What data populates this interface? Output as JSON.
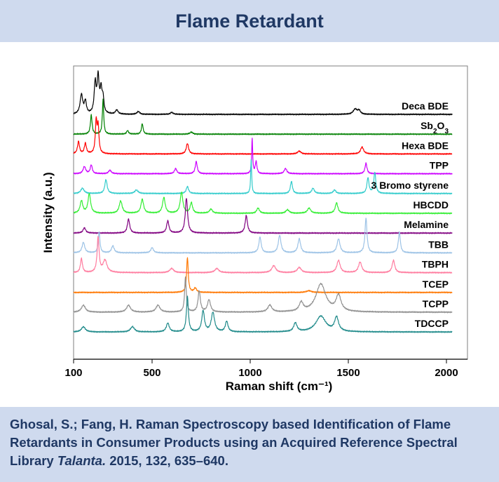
{
  "header": {
    "title": "Flame Retardant"
  },
  "caption": {
    "authors_text": "Ghosal, S.; Fang, H. Raman Spectroscopy based Identification of Flame Retardants in Consumer Products using an Acquired Reference Spectral Library ",
    "journal": "Talanta.",
    "citation_rest": " 2015, 132, 635–640."
  },
  "chart_data": {
    "type": "line",
    "title": "",
    "xlabel": "Raman shift (cm⁻¹)",
    "ylabel": "Intensity (a.u.)",
    "xlim": [
      100,
      2000
    ],
    "xticks": [
      100,
      500,
      1000,
      1500,
      2000
    ],
    "x_range_drawn": [
      100,
      2030
    ],
    "grid": false,
    "legend": "none",
    "note": "Stacked offset Raman spectra; each series labeled at right; y values are relative intensities (0-1) above each trace baseline.",
    "series": [
      {
        "name": "Deca BDE",
        "label_parts": [
          [
            "Deca BDE",
            ""
          ]
        ],
        "color": "#000000",
        "peaks": [
          [
            140,
            0.55,
            8
          ],
          [
            160,
            0.35,
            6
          ],
          [
            210,
            0.85,
            6
          ],
          [
            225,
            1.0,
            6
          ],
          [
            240,
            0.65,
            6
          ],
          [
            250,
            0.4,
            5
          ],
          [
            320,
            0.12,
            8
          ],
          [
            430,
            0.08,
            8
          ],
          [
            600,
            0.06,
            8
          ],
          [
            1535,
            0.15,
            12
          ],
          [
            1555,
            0.1,
            8
          ]
        ]
      },
      {
        "name": "Sb2O3",
        "label_parts": [
          [
            "Sb",
            ""
          ],
          [
            "2",
            "sub"
          ],
          [
            "O",
            ""
          ],
          [
            "3",
            "sub"
          ]
        ],
        "color": "#008000",
        "peaks": [
          [
            190,
            0.55,
            5
          ],
          [
            250,
            1.0,
            4
          ],
          [
            375,
            0.1,
            6
          ],
          [
            450,
            0.3,
            5
          ],
          [
            700,
            0.06,
            8
          ]
        ]
      },
      {
        "name": "Hexa BDE",
        "label_parts": [
          [
            "Hexa BDE",
            ""
          ]
        ],
        "color": "#ff0000",
        "peaks": [
          [
            125,
            0.35,
            6
          ],
          [
            160,
            0.3,
            6
          ],
          [
            215,
            0.9,
            5
          ],
          [
            225,
            0.75,
            5
          ],
          [
            680,
            0.3,
            7
          ],
          [
            1250,
            0.08,
            10
          ],
          [
            1570,
            0.2,
            9
          ]
        ]
      },
      {
        "name": "TPP",
        "label_parts": [
          [
            "TPP",
            ""
          ]
        ],
        "color": "#cc00ff",
        "peaks": [
          [
            155,
            0.2,
            8
          ],
          [
            190,
            0.25,
            6
          ],
          [
            285,
            0.1,
            8
          ],
          [
            620,
            0.15,
            7
          ],
          [
            725,
            0.35,
            6
          ],
          [
            1010,
            1.0,
            3
          ],
          [
            1030,
            0.35,
            5
          ],
          [
            1180,
            0.15,
            8
          ],
          [
            1590,
            0.3,
            6
          ]
        ]
      },
      {
        "name": "3 Bromo styrene",
        "label_parts": [
          [
            "3 Bromo styrene",
            ""
          ]
        ],
        "color": "#33cccc",
        "peaks": [
          [
            145,
            0.15,
            10
          ],
          [
            265,
            0.4,
            7
          ],
          [
            420,
            0.1,
            10
          ],
          [
            680,
            0.2,
            7
          ],
          [
            1005,
            1.0,
            3
          ],
          [
            1210,
            0.35,
            6
          ],
          [
            1320,
            0.15,
            8
          ],
          [
            1430,
            0.1,
            8
          ],
          [
            1600,
            0.45,
            6
          ],
          [
            1635,
            0.6,
            6
          ]
        ]
      },
      {
        "name": "HBCDD",
        "label_parts": [
          [
            "HBCDD",
            ""
          ]
        ],
        "color": "#33ee33",
        "peaks": [
          [
            140,
            0.35,
            8
          ],
          [
            180,
            0.55,
            8
          ],
          [
            340,
            0.35,
            9
          ],
          [
            450,
            0.4,
            8
          ],
          [
            560,
            0.45,
            8
          ],
          [
            650,
            0.6,
            8
          ],
          [
            700,
            0.3,
            7
          ],
          [
            800,
            0.12,
            9
          ],
          [
            1040,
            0.15,
            8
          ],
          [
            1190,
            0.1,
            10
          ],
          [
            1300,
            0.15,
            10
          ],
          [
            1440,
            0.3,
            8
          ]
        ]
      },
      {
        "name": "Melamine",
        "label_parts": [
          [
            "Melamine",
            ""
          ]
        ],
        "color": "#800080",
        "peaks": [
          [
            155,
            0.15,
            8
          ],
          [
            380,
            0.4,
            7
          ],
          [
            580,
            0.35,
            7
          ],
          [
            675,
            1.0,
            7
          ],
          [
            980,
            0.5,
            7
          ]
        ]
      },
      {
        "name": "TBB",
        "label_parts": [
          [
            "TBB",
            ""
          ]
        ],
        "color": "#9dc3e6",
        "peaks": [
          [
            150,
            0.3,
            8
          ],
          [
            230,
            0.6,
            5
          ],
          [
            300,
            0.2,
            8
          ],
          [
            500,
            0.15,
            8
          ],
          [
            1050,
            0.45,
            7
          ],
          [
            1150,
            0.5,
            8
          ],
          [
            1250,
            0.4,
            8
          ],
          [
            1450,
            0.4,
            9
          ],
          [
            1590,
            1.0,
            6
          ],
          [
            1760,
            0.6,
            6
          ]
        ]
      },
      {
        "name": "TBPH",
        "label_parts": [
          [
            "TBPH",
            ""
          ]
        ],
        "color": "#ff7c9f",
        "peaks": [
          [
            140,
            0.4,
            6
          ],
          [
            225,
            1.0,
            6
          ],
          [
            260,
            0.35,
            12
          ],
          [
            600,
            0.12,
            12
          ],
          [
            830,
            0.12,
            12
          ],
          [
            1120,
            0.2,
            12
          ],
          [
            1250,
            0.15,
            12
          ],
          [
            1450,
            0.35,
            10
          ],
          [
            1560,
            0.3,
            10
          ],
          [
            1730,
            0.35,
            8
          ]
        ]
      },
      {
        "name": "TCEP",
        "label_parts": [
          [
            "TCEP",
            ""
          ]
        ],
        "color": "#ff7700",
        "peaks": [
          [
            680,
            1.0,
            5
          ],
          [
            720,
            0.12,
            8
          ],
          [
            1300,
            0.05,
            15
          ]
        ]
      },
      {
        "name": "TCPP",
        "label_parts": [
          [
            "TCPP",
            ""
          ]
        ],
        "color": "#909090",
        "peaks": [
          [
            150,
            0.2,
            12
          ],
          [
            380,
            0.2,
            12
          ],
          [
            530,
            0.2,
            12
          ],
          [
            670,
            1.0,
            5
          ],
          [
            740,
            0.6,
            7
          ],
          [
            790,
            0.35,
            9
          ],
          [
            1100,
            0.2,
            12
          ],
          [
            1260,
            0.25,
            12
          ],
          [
            1360,
            0.8,
            30
          ],
          [
            1450,
            0.45,
            15
          ]
        ]
      },
      {
        "name": "TDCCP",
        "label_parts": [
          [
            "TDCCP",
            ""
          ]
        ],
        "color": "#1f8a8a",
        "peaks": [
          [
            150,
            0.15,
            12
          ],
          [
            400,
            0.15,
            12
          ],
          [
            580,
            0.25,
            9
          ],
          [
            680,
            1.0,
            6
          ],
          [
            760,
            0.6,
            8
          ],
          [
            810,
            0.55,
            10
          ],
          [
            880,
            0.3,
            8
          ],
          [
            1230,
            0.25,
            10
          ],
          [
            1360,
            0.45,
            30
          ],
          [
            1440,
            0.4,
            12
          ]
        ]
      }
    ]
  }
}
